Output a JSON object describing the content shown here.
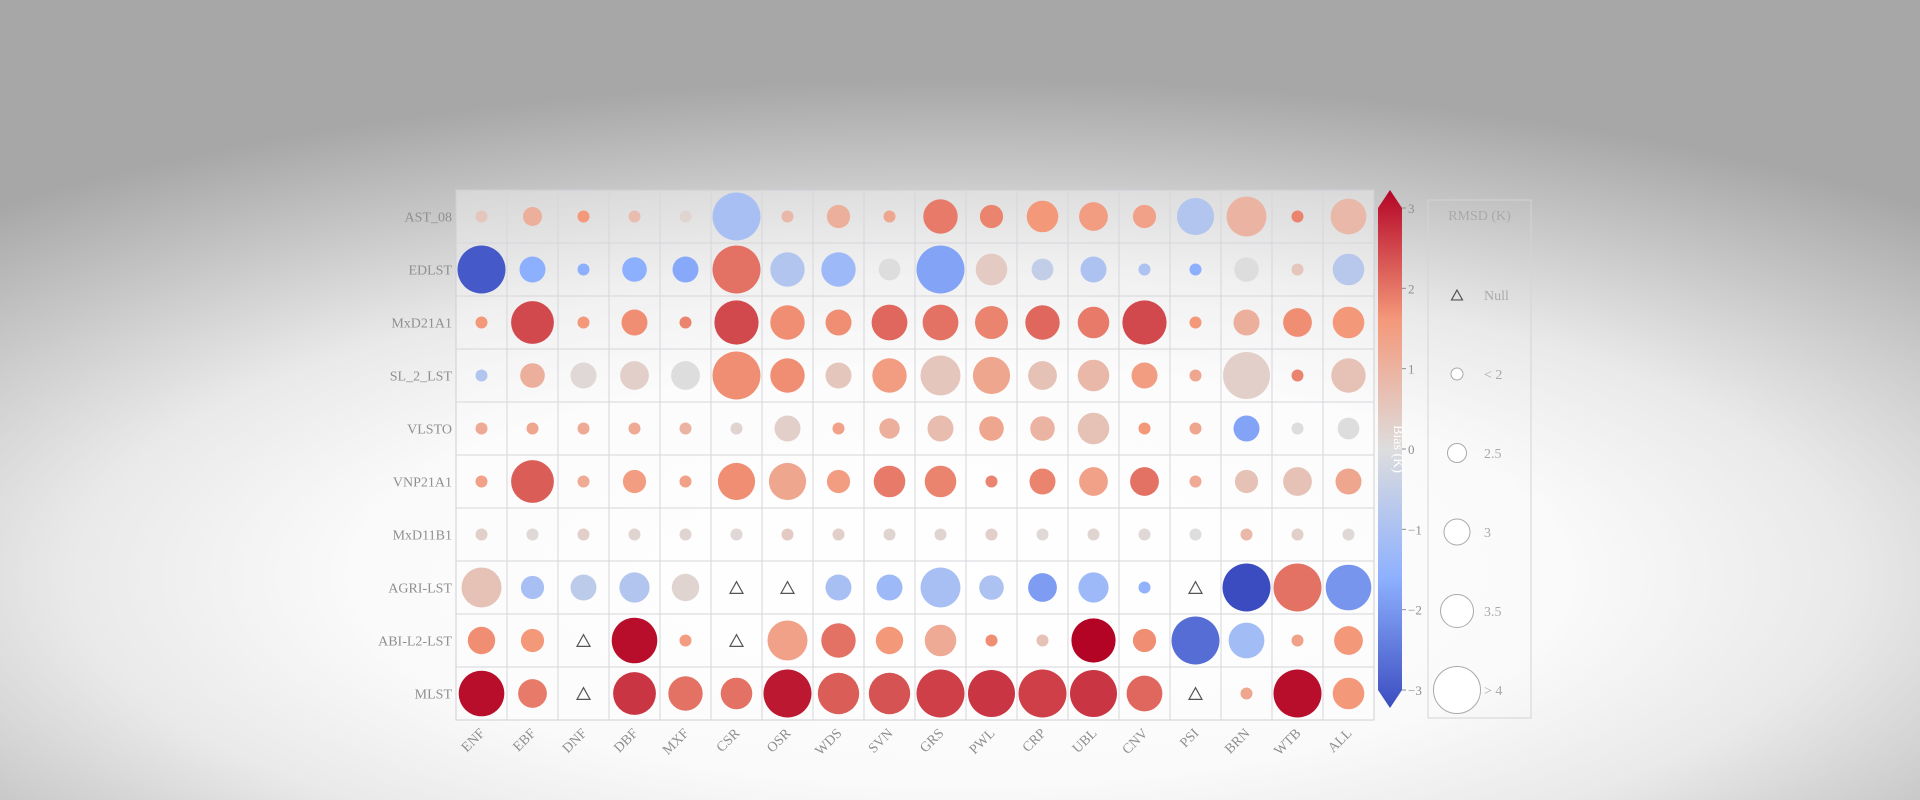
{
  "chart_data": {
    "type": "heatmap",
    "subtype": "circle-matrix",
    "rows": [
      "AST_08",
      "EDLST",
      "MxD21A1",
      "SL_2_LST",
      "VLSTO",
      "VNP21A1",
      "MxD11B1",
      "AGRI-LST",
      "ABI-L2-LST",
      "MLST"
    ],
    "columns": [
      "ENF",
      "EBF",
      "DNF",
      "DBF",
      "MXF",
      "CSR",
      "OSR",
      "WDS",
      "SVN",
      "GRS",
      "PWL",
      "CRP",
      "UBL",
      "CNV",
      "PSI",
      "BRN",
      "WTB",
      "ALL"
    ],
    "value_fields": [
      "bias_K",
      "rmsd_K"
    ],
    "colorbar": {
      "label": "Bias (K)",
      "range": [
        -3,
        3
      ],
      "ticks": [
        "3",
        "2",
        "1",
        "0",
        "−1",
        "−2",
        "−3"
      ],
      "extend": "both",
      "colormap": "coolwarm",
      "colors": {
        "low": "#3b4cc0",
        "mid": "#dddddd",
        "high": "#b40426"
      }
    },
    "size_legend": {
      "title": "RMSD (K)",
      "entries": [
        {
          "label": "Null",
          "rmsd": null,
          "marker": "triangle"
        },
        {
          "label": "< 2",
          "rmsd": 1.5
        },
        {
          "label": "2.5",
          "rmsd": 2.5
        },
        {
          "label": "3",
          "rmsd": 3
        },
        {
          "label": "3.5",
          "rmsd": 3.5
        },
        {
          "label": "> 4",
          "rmsd": 4.5
        }
      ]
    },
    "cells": [
      [
        [
          0.5,
          1.5
        ],
        [
          1.0,
          2.5
        ],
        [
          1.5,
          1.6
        ],
        [
          0.7,
          1.5
        ],
        [
          0.2,
          1.5
        ],
        [
          -1.0,
          4.6
        ],
        [
          0.8,
          1.5
        ],
        [
          1.0,
          2.8
        ],
        [
          1.2,
          1.5
        ],
        [
          1.8,
          3.6
        ],
        [
          1.7,
          2.8
        ],
        [
          1.5,
          3.4
        ],
        [
          1.4,
          3.2
        ],
        [
          1.3,
          2.8
        ],
        [
          -0.8,
          3.8
        ],
        [
          0.9,
          4.0
        ],
        [
          1.7,
          1.6
        ],
        [
          0.8,
          3.7
        ]
      ],
      [
        [
          -2.8,
          4.6
        ],
        [
          -1.5,
          3.0
        ],
        [
          -1.5,
          1.6
        ],
        [
          -1.5,
          2.9
        ],
        [
          -1.6,
          3.0
        ],
        [
          1.9,
          4.6
        ],
        [
          -0.8,
          3.6
        ],
        [
          -1.2,
          3.6
        ],
        [
          0.0,
          2.7
        ],
        [
          -1.7,
          4.7
        ],
        [
          0.4,
          3.4
        ],
        [
          -0.5,
          2.7
        ],
        [
          -0.9,
          3.0
        ],
        [
          -0.9,
          1.6
        ],
        [
          -1.5,
          1.6
        ],
        [
          0.0,
          2.9
        ],
        [
          0.5,
          1.6
        ],
        [
          -0.7,
          3.4
        ]
      ],
      [
        [
          1.5,
          1.6
        ],
        [
          2.3,
          4.2
        ],
        [
          1.5,
          1.6
        ],
        [
          1.6,
          3.0
        ],
        [
          1.7,
          1.6
        ],
        [
          2.3,
          4.3
        ],
        [
          1.6,
          3.6
        ],
        [
          1.6,
          3.0
        ],
        [
          2.0,
          3.7
        ],
        [
          1.9,
          3.7
        ],
        [
          1.7,
          3.5
        ],
        [
          2.0,
          3.6
        ],
        [
          1.8,
          3.4
        ],
        [
          2.3,
          4.3
        ],
        [
          1.5,
          1.6
        ],
        [
          1.0,
          3.0
        ],
        [
          1.6,
          3.2
        ],
        [
          1.5,
          3.4
        ]
      ],
      [
        [
          -0.8,
          1.5
        ],
        [
          1.0,
          2.9
        ],
        [
          0.1,
          3.0
        ],
        [
          0.3,
          3.2
        ],
        [
          0.0,
          3.2
        ],
        [
          1.6,
          4.6
        ],
        [
          1.6,
          3.6
        ],
        [
          0.5,
          3.0
        ],
        [
          1.4,
          3.6
        ],
        [
          0.5,
          4.0
        ],
        [
          1.2,
          3.8
        ],
        [
          0.6,
          3.2
        ],
        [
          0.8,
          3.4
        ],
        [
          1.4,
          3.0
        ],
        [
          1.2,
          1.5
        ],
        [
          0.3,
          4.5
        ],
        [
          1.7,
          1.6
        ],
        [
          0.6,
          3.6
        ]
      ],
      [
        [
          1.1,
          1.6
        ],
        [
          1.2,
          1.5
        ],
        [
          1.1,
          1.5
        ],
        [
          1.1,
          1.5
        ],
        [
          0.9,
          1.5
        ],
        [
          0.2,
          1.5
        ],
        [
          0.3,
          3.0
        ],
        [
          1.3,
          1.5
        ],
        [
          1.0,
          2.6
        ],
        [
          0.7,
          3.0
        ],
        [
          1.2,
          2.9
        ],
        [
          0.9,
          2.9
        ],
        [
          0.6,
          3.4
        ],
        [
          1.5,
          1.6
        ],
        [
          1.2,
          1.5
        ],
        [
          -1.7,
          3.0
        ],
        [
          0.0,
          1.5
        ],
        [
          0.0,
          2.7
        ]
      ],
      [
        [
          1.3,
          1.5
        ],
        [
          2.1,
          4.2
        ],
        [
          1.1,
          1.5
        ],
        [
          1.4,
          2.8
        ],
        [
          1.3,
          1.5
        ],
        [
          1.6,
          3.8
        ],
        [
          1.2,
          3.8
        ],
        [
          1.4,
          2.8
        ],
        [
          1.8,
          3.4
        ],
        [
          1.7,
          3.4
        ],
        [
          1.7,
          1.5
        ],
        [
          1.7,
          3.0
        ],
        [
          1.3,
          3.2
        ],
        [
          1.9,
          3.2
        ],
        [
          1.1,
          1.5
        ],
        [
          0.6,
          2.8
        ],
        [
          0.6,
          3.2
        ],
        [
          1.2,
          3.0
        ]
      ],
      [
        [
          0.3,
          1.5
        ],
        [
          0.1,
          1.5
        ],
        [
          0.3,
          1.5
        ],
        [
          0.2,
          1.5
        ],
        [
          0.2,
          1.5
        ],
        [
          0.1,
          1.5
        ],
        [
          0.4,
          1.5
        ],
        [
          0.3,
          1.5
        ],
        [
          0.2,
          1.5
        ],
        [
          0.2,
          1.5
        ],
        [
          0.3,
          1.5
        ],
        [
          0.1,
          1.5
        ],
        [
          0.2,
          1.5
        ],
        [
          0.1,
          1.5
        ],
        [
          0.0,
          1.5
        ],
        [
          0.8,
          1.5
        ],
        [
          0.3,
          1.5
        ],
        [
          0.1,
          1.5
        ]
      ],
      [
        [
          0.6,
          4.0
        ],
        [
          -1.0,
          2.8
        ],
        [
          -0.6,
          3.0
        ],
        [
          -0.8,
          3.3
        ],
        [
          0.2,
          3.1
        ],
        [
          null,
          null
        ],
        [
          null,
          null
        ],
        [
          -1.0,
          3.0
        ],
        [
          -1.2,
          3.0
        ],
        [
          -1.0,
          4.0
        ],
        [
          -0.9,
          2.9
        ],
        [
          -1.8,
          3.2
        ],
        [
          -1.2,
          3.3
        ],
        [
          -1.4,
          1.6
        ],
        [
          null,
          null
        ],
        [
          -3.0,
          4.6
        ],
        [
          1.9,
          4.6
        ],
        [
          -1.9,
          4.4
        ]
      ],
      [
        [
          1.6,
          3.1
        ],
        [
          1.5,
          2.8
        ],
        [
          null,
          null
        ],
        [
          2.9,
          4.4
        ],
        [
          1.4,
          1.5
        ],
        [
          null,
          null
        ],
        [
          1.3,
          4.0
        ],
        [
          1.9,
          3.6
        ],
        [
          1.5,
          3.1
        ],
        [
          1.1,
          3.4
        ],
        [
          1.6,
          1.5
        ],
        [
          0.6,
          1.5
        ],
        [
          3.0,
          4.3
        ],
        [
          1.6,
          2.8
        ],
        [
          -2.5,
          4.6
        ],
        [
          -1.1,
          3.7
        ],
        [
          1.3,
          1.5
        ],
        [
          1.5,
          3.2
        ]
      ],
      [
        [
          2.9,
          4.4
        ],
        [
          1.8,
          3.2
        ],
        [
          null,
          null
        ],
        [
          2.5,
          4.2
        ],
        [
          1.9,
          3.6
        ],
        [
          1.9,
          3.4
        ],
        [
          2.8,
          4.6
        ],
        [
          2.1,
          4.1
        ],
        [
          2.2,
          4.1
        ],
        [
          2.4,
          4.6
        ],
        [
          2.5,
          4.5
        ],
        [
          2.4,
          4.6
        ],
        [
          2.5,
          4.5
        ],
        [
          2.0,
          3.7
        ],
        [
          null,
          null
        ],
        [
          1.2,
          1.5
        ],
        [
          2.9,
          4.8
        ],
        [
          1.5,
          3.4
        ]
      ]
    ]
  }
}
